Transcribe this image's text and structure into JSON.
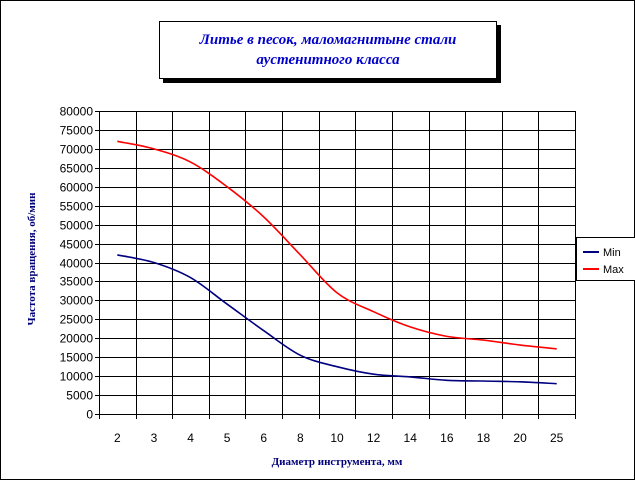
{
  "chart_data": {
    "type": "line",
    "title": "Литье в песок, маломагнитыне стали аустенитного класса",
    "title_lines": [
      "Литье в песок, маломагнитыне стали",
      "аустенитного класса"
    ],
    "xlabel": "Диаметр инструмента, мм",
    "ylabel": "Частота вращения, об/мин",
    "categories": [
      "2",
      "3",
      "4",
      "5",
      "6",
      "8",
      "10",
      "12",
      "14",
      "16",
      "18",
      "20",
      "25"
    ],
    "ylim": [
      0,
      80000
    ],
    "yticks": [
      "0",
      "5000",
      "10000",
      "15000",
      "20000",
      "25000",
      "30000",
      "35000",
      "40000",
      "45000",
      "50000",
      "55000",
      "60000",
      "65000",
      "70000",
      "75000",
      "80000"
    ],
    "grid": true,
    "legend_position": "right",
    "series": [
      {
        "name": "Min",
        "color": "#000080",
        "values": [
          42000,
          40000,
          36000,
          29000,
          22000,
          15500,
          12500,
          10500,
          9800,
          8900,
          8700,
          8500,
          8000
        ]
      },
      {
        "name": "Max",
        "color": "#ff0000",
        "values": [
          72000,
          70000,
          66500,
          60000,
          52000,
          42000,
          32000,
          27000,
          23000,
          20500,
          19500,
          18200,
          17200
        ]
      }
    ]
  }
}
